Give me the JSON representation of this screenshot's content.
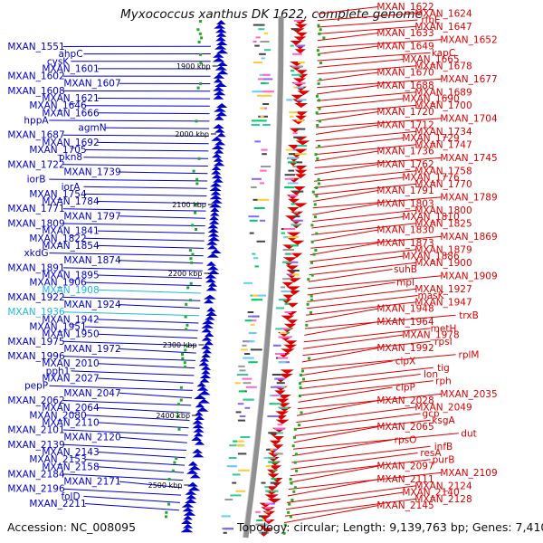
{
  "title": "Myxococcus xanthus DK 1622, complete genome",
  "accession": "Accession: NC_008095",
  "topology": "Topology: circular; Length: 9,139,763 bp; Genes: 7,410",
  "colors": {
    "forward": "#dd0000",
    "reverse": "#0000cc",
    "highlight": "#22b8e0",
    "backbone": "#909090"
  },
  "kbp_marks": [
    "1900 kbp",
    "2000 kbp",
    "2100 kbp",
    "2200 kbp",
    "2300 kbp",
    "2400 kbp",
    "2500 kbp"
  ],
  "left_labels": [
    "MXAN_1551",
    "ahpC",
    "cysK",
    "MXAN_1601",
    "MXAN_1602",
    "MXAN_1607",
    "MXAN_1608",
    "MXAN_1621",
    "MXAN_1646",
    "MXAN_1666",
    "hppA",
    "agmN",
    "MXAN_1687",
    "MXAN_1692",
    "MXAN_1705",
    "pkn8",
    "MXAN_1722",
    "MXAN_1739",
    "iorB",
    "iorA",
    "MXAN_1754",
    "MXAN_1784",
    "MXAN_1771",
    "MXAN_1797",
    "MXAN_1809",
    "MXAN_1841",
    "MXAN_1822",
    "MXAN_1854",
    "xkdG",
    "MXAN_1874",
    "MXAN_1891",
    "MXAN_1895",
    "MXAN_1906",
    "MXAN_1908",
    "MXAN_1922",
    "MXAN_1924",
    "MXAN_1936",
    "MXAN_1942",
    "MXAN_1951",
    "MXAN_1950",
    "MXAN_1975",
    "MXAN_1972",
    "MXAN_1996",
    "MXAN_2010",
    "pph1",
    "MXAN_2027",
    "pepP",
    "MXAN_2047",
    "MXAN_2062",
    "MXAN_2064",
    "MXAN_2080",
    "MXAN_2110",
    "MXAN_2101",
    "MXAN_2120",
    "MXAN_2139",
    "MXAN_2143",
    "MXAN_2153",
    "MXAN_2158",
    "MXAN_2184",
    "MXAN_2171",
    "MXAN_2196",
    "folD",
    "MXAN_2211"
  ],
  "highlight_labels": [
    "MXAN_1908",
    "MXAN_1936"
  ],
  "right_labels": [
    "MXAN_1622",
    "MXAN_1624",
    "rfbE",
    "MXAN_1647",
    "MXAN_1633",
    "MXAN_1652",
    "MXAN_1649",
    "kapC",
    "MXAN_1665",
    "MXAN_1678",
    "MXAN_1670",
    "MXAN_1677",
    "MXAN_1688",
    "MXAN_1689",
    "MXAN_1690",
    "MXAN_1700",
    "MXAN_1720",
    "MXAN_1704",
    "MXAN_1712",
    "MXAN_1734",
    "MXAN_1729",
    "MXAN_1747",
    "MXAN_1736",
    "MXAN_1745",
    "MXAN_1762",
    "MXAN_1758",
    "MXAN_1776",
    "MXAN_1770",
    "MXAN_1791",
    "MXAN_1789",
    "MXAN_1803",
    "MXAN_1800",
    "MXAN_1810",
    "MXAN_1825",
    "MXAN_1830",
    "MXAN_1869",
    "MXAN_1873",
    "MXAN_1879",
    "MXAN_1886",
    "MXAN_1900",
    "suhB",
    "MXAN_1909",
    "mpl",
    "MXAN_1927",
    "masK",
    "MXAN_1947",
    "MXAN_1948",
    "trxB",
    "MXAN_1964",
    "metH",
    "MXAN_1978",
    "rpsI",
    "MXAN_1992",
    "rplM",
    "clpX",
    "tig",
    "lon",
    "rph",
    "clpP",
    "MXAN_2035",
    "MXAN_2028",
    "MXAN_2049",
    "gcp",
    "ksgA",
    "MXAN_2065",
    "dut",
    "rpsO",
    "infB",
    "resA",
    "purB",
    "MXAN_2097",
    "MXAN_2109",
    "MXAN_2111",
    "MXAN_2124",
    "MXAN_2140",
    "MXAN_2128",
    "MXAN_2145"
  ]
}
